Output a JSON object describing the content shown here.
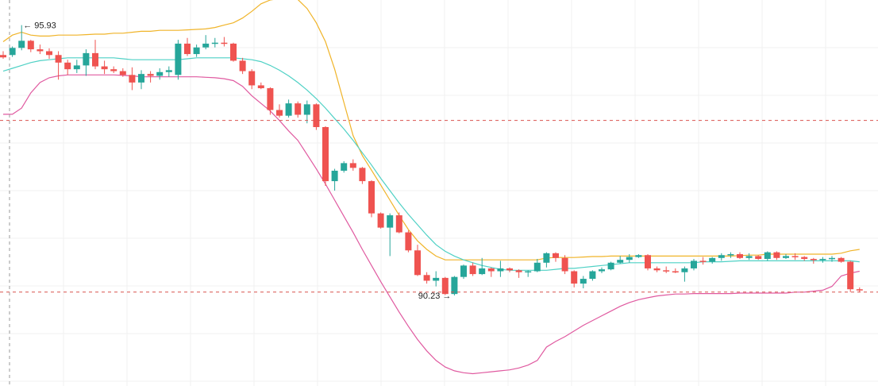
{
  "chart_data": {
    "type": "candlestick",
    "colors": {
      "up": "#26a69a",
      "down": "#ef5350",
      "upper_band": "#f0b429",
      "middle_band": "#4fd1c5",
      "lower_band": "#e05aa0",
      "crosshair": "#d9534f",
      "grid": "#f0f0f0"
    },
    "high_annotation": {
      "text": "95.93",
      "arrow": "←"
    },
    "low_annotation": {
      "text": "90.23",
      "arrow": "→"
    },
    "candles": [
      [
        95.3,
        95.38,
        95.22,
        95.25
      ],
      [
        95.3,
        95.48,
        95.26,
        95.45
      ],
      [
        95.45,
        95.93,
        95.4,
        95.6
      ],
      [
        95.6,
        95.62,
        95.36,
        95.42
      ],
      [
        95.42,
        95.52,
        95.32,
        95.38
      ],
      [
        95.38,
        95.44,
        95.22,
        95.3
      ],
      [
        95.3,
        95.38,
        94.78,
        95.14
      ],
      [
        95.14,
        95.2,
        94.88,
        95.0
      ],
      [
        95.0,
        95.2,
        94.92,
        95.08
      ],
      [
        95.08,
        95.42,
        94.86,
        95.34
      ],
      [
        95.34,
        95.62,
        95.0,
        95.06
      ],
      [
        95.06,
        95.18,
        94.9,
        95.0
      ],
      [
        95.0,
        95.06,
        94.92,
        94.96
      ],
      [
        94.96,
        95.02,
        94.84,
        94.88
      ],
      [
        94.88,
        95.04,
        94.56,
        94.72
      ],
      [
        94.72,
        94.98,
        94.58,
        94.9
      ],
      [
        94.9,
        94.96,
        94.72,
        94.86
      ],
      [
        94.86,
        95.02,
        94.78,
        94.94
      ],
      [
        94.94,
        95.06,
        94.84,
        94.98
      ],
      [
        94.88,
        95.62,
        94.78,
        95.54
      ],
      [
        95.54,
        95.66,
        95.28,
        95.32
      ],
      [
        95.32,
        95.52,
        95.26,
        95.46
      ],
      [
        95.46,
        95.72,
        95.42,
        95.54
      ],
      [
        95.54,
        95.66,
        95.46,
        95.56
      ],
      [
        95.56,
        95.68,
        95.48,
        95.54
      ],
      [
        95.54,
        95.56,
        95.16,
        95.18
      ],
      [
        95.18,
        95.24,
        94.9,
        94.96
      ],
      [
        94.96,
        95.0,
        94.58,
        94.66
      ],
      [
        94.66,
        94.72,
        94.58,
        94.6
      ],
      [
        94.6,
        94.62,
        94.04,
        94.14
      ],
      [
        94.14,
        94.26,
        93.98,
        94.02
      ],
      [
        94.02,
        94.36,
        93.98,
        94.28
      ],
      [
        94.28,
        94.32,
        93.98,
        94.04
      ],
      [
        94.04,
        94.34,
        93.86,
        94.26
      ],
      [
        94.26,
        94.28,
        93.72,
        93.78
      ],
      [
        93.78,
        93.8,
        92.54,
        92.64
      ],
      [
        92.64,
        92.9,
        92.44,
        92.86
      ],
      [
        92.86,
        93.06,
        92.82,
        93.02
      ],
      [
        93.02,
        93.1,
        92.86,
        92.92
      ],
      [
        92.92,
        92.94,
        92.58,
        92.64
      ],
      [
        92.64,
        92.66,
        91.88,
        91.96
      ],
      [
        91.96,
        91.98,
        91.64,
        91.66
      ],
      [
        91.66,
        91.96,
        91.06,
        91.92
      ],
      [
        91.92,
        91.98,
        91.54,
        91.56
      ],
      [
        91.56,
        91.6,
        91.14,
        91.18
      ],
      [
        91.18,
        91.3,
        90.64,
        90.66
      ],
      [
        90.66,
        90.72,
        90.48,
        90.54
      ],
      [
        90.54,
        90.74,
        90.42,
        90.6
      ],
      [
        90.6,
        90.62,
        90.24,
        90.26
      ],
      [
        90.26,
        90.64,
        90.23,
        90.62
      ],
      [
        90.62,
        90.88,
        90.58,
        90.86
      ],
      [
        90.86,
        90.92,
        90.64,
        90.68
      ],
      [
        90.68,
        91.02,
        90.66,
        90.8
      ],
      [
        90.8,
        90.82,
        90.62,
        90.74
      ],
      [
        90.74,
        90.96,
        90.62,
        90.8
      ],
      [
        90.8,
        90.82,
        90.72,
        90.76
      ],
      [
        90.76,
        90.78,
        90.6,
        90.72
      ],
      [
        90.72,
        90.76,
        90.62,
        90.74
      ],
      [
        90.74,
        91.0,
        90.72,
        90.92
      ],
      [
        90.92,
        91.14,
        90.82,
        91.12
      ],
      [
        91.12,
        91.14,
        90.94,
        91.02
      ],
      [
        91.02,
        91.08,
        90.68,
        90.74
      ],
      [
        90.74,
        90.76,
        90.4,
        90.48
      ],
      [
        90.48,
        90.64,
        90.38,
        90.58
      ],
      [
        90.58,
        90.76,
        90.54,
        90.74
      ],
      [
        90.74,
        90.82,
        90.7,
        90.78
      ],
      [
        90.78,
        90.94,
        90.76,
        90.92
      ],
      [
        90.92,
        91.06,
        90.9,
        90.98
      ],
      [
        90.98,
        91.1,
        90.92,
        91.04
      ],
      [
        91.04,
        91.1,
        91.02,
        91.08
      ],
      [
        91.08,
        91.1,
        90.76,
        90.8
      ],
      [
        90.8,
        90.84,
        90.72,
        90.76
      ],
      [
        90.76,
        90.84,
        90.7,
        90.74
      ],
      [
        90.74,
        90.8,
        90.7,
        90.72
      ],
      [
        90.72,
        90.84,
        90.52,
        90.8
      ],
      [
        90.8,
        91.0,
        90.76,
        90.96
      ],
      [
        90.96,
        91.04,
        90.88,
        90.94
      ],
      [
        90.94,
        91.04,
        90.9,
        91.02
      ],
      [
        91.02,
        91.12,
        90.96,
        91.08
      ],
      [
        91.08,
        91.14,
        91.02,
        91.1
      ],
      [
        91.1,
        91.14,
        91.0,
        91.02
      ],
      [
        91.02,
        91.12,
        90.98,
        91.06
      ],
      [
        91.06,
        91.08,
        90.98,
        91.0
      ],
      [
        91.0,
        91.16,
        90.96,
        91.14
      ],
      [
        91.14,
        91.16,
        90.98,
        91.02
      ],
      [
        91.02,
        91.1,
        91.0,
        91.06
      ],
      [
        91.06,
        91.12,
        90.98,
        91.04
      ],
      [
        91.04,
        91.06,
        90.96,
        91.0
      ],
      [
        91.0,
        91.02,
        90.9,
        90.98
      ],
      [
        90.98,
        91.04,
        90.92,
        91.0
      ],
      [
        91.0,
        91.06,
        90.94,
        91.02
      ],
      [
        91.02,
        91.04,
        90.92,
        90.94
      ],
      [
        90.94,
        90.96,
        90.3,
        90.36
      ],
      [
        90.36,
        90.4,
        90.3,
        90.34
      ]
    ],
    "bollinger": {
      "upper": [
        95.58,
        95.72,
        95.78,
        95.72,
        95.7,
        95.7,
        95.72,
        95.72,
        95.72,
        95.73,
        95.74,
        95.74,
        95.76,
        95.76,
        95.78,
        95.8,
        95.8,
        95.82,
        95.82,
        95.82,
        95.83,
        95.84,
        95.85,
        95.88,
        95.93,
        95.98,
        96.08,
        96.22,
        96.38,
        96.46,
        96.49,
        96.52,
        96.47,
        96.28,
        95.98,
        95.58,
        95.0,
        94.3,
        93.6,
        93.18,
        92.87,
        92.56,
        92.24,
        91.92,
        91.62,
        91.38,
        91.2,
        91.06,
        90.98,
        90.98,
        90.98,
        90.98,
        90.98,
        90.98,
        90.98,
        90.98,
        90.98,
        90.98,
        90.98,
        91.02,
        91.03,
        91.03,
        91.03,
        91.04,
        91.05,
        91.05,
        91.06,
        91.06,
        91.06,
        91.06,
        91.06,
        91.06,
        91.06,
        91.06,
        91.06,
        91.06,
        91.06,
        91.06,
        91.06,
        91.06,
        91.07,
        91.08,
        91.08,
        91.1,
        91.1,
        91.1,
        91.1,
        91.1,
        91.1,
        91.1,
        91.1,
        91.12,
        91.17,
        91.2
      ],
      "middle": [
        94.96,
        95.02,
        95.08,
        95.14,
        95.18,
        95.2,
        95.22,
        95.24,
        95.24,
        95.24,
        95.24,
        95.24,
        95.24,
        95.22,
        95.2,
        95.2,
        95.2,
        95.2,
        95.2,
        95.2,
        95.22,
        95.24,
        95.24,
        95.24,
        95.24,
        95.24,
        95.22,
        95.2,
        95.16,
        95.08,
        94.98,
        94.86,
        94.72,
        94.56,
        94.38,
        94.18,
        93.96,
        93.74,
        93.5,
        93.24,
        92.98,
        92.7,
        92.44,
        92.18,
        91.94,
        91.72,
        91.5,
        91.3,
        91.16,
        91.06,
        90.98,
        90.92,
        90.86,
        90.82,
        90.78,
        90.76,
        90.76,
        90.76,
        90.76,
        90.76,
        90.78,
        90.8,
        90.8,
        90.82,
        90.84,
        90.86,
        90.88,
        90.9,
        90.92,
        90.92,
        90.92,
        90.92,
        90.92,
        90.92,
        90.92,
        90.92,
        90.94,
        90.94,
        90.94,
        90.95,
        90.96,
        90.96,
        90.96,
        90.96,
        90.96,
        90.96,
        90.96,
        90.96,
        90.96,
        90.96,
        90.96,
        90.96,
        90.96,
        90.94
      ],
      "lower": [
        94.05,
        94.05,
        94.18,
        94.5,
        94.72,
        94.82,
        94.86,
        94.88,
        94.88,
        94.88,
        94.88,
        94.88,
        94.88,
        94.87,
        94.86,
        94.84,
        94.84,
        94.84,
        94.84,
        94.84,
        94.84,
        94.84,
        94.83,
        94.82,
        94.8,
        94.76,
        94.64,
        94.44,
        94.28,
        94.12,
        93.92,
        93.7,
        93.5,
        93.2,
        92.9,
        92.58,
        92.24,
        91.9,
        91.56,
        91.2,
        90.86,
        90.52,
        90.2,
        89.88,
        89.58,
        89.3,
        89.06,
        88.86,
        88.72,
        88.64,
        88.6,
        88.58,
        88.6,
        88.62,
        88.64,
        88.66,
        88.7,
        88.76,
        88.86,
        89.14,
        89.26,
        89.36,
        89.48,
        89.6,
        89.7,
        89.8,
        89.9,
        90.0,
        90.08,
        90.14,
        90.18,
        90.22,
        90.24,
        90.26,
        90.26,
        90.27,
        90.27,
        90.27,
        90.27,
        90.27,
        90.28,
        90.28,
        90.28,
        90.28,
        90.28,
        90.28,
        90.3,
        90.3,
        90.32,
        90.34,
        90.42,
        90.64,
        90.7,
        90.74
      ]
    },
    "price_range": [
      88.32,
      96.46
    ],
    "horizontal_reference_price": 93.92,
    "current_price": 90.3
  }
}
